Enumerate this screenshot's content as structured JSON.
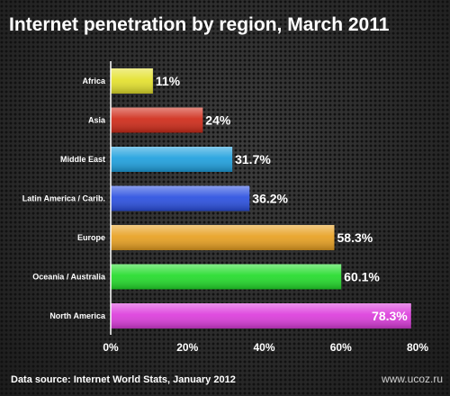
{
  "title": "Internet penetration by region, March 2011",
  "footer": {
    "source": "Data source: Internet World Stats, January 2012",
    "watermark": "www.ucoz.ru"
  },
  "chart_data": {
    "type": "bar",
    "orientation": "horizontal",
    "title": "Internet penetration by region, March 2011",
    "categories": [
      "Africa",
      "Asia",
      "Middle East",
      "Latin America / Carib.",
      "Europe",
      "Oceania / Australia",
      "North America"
    ],
    "values": [
      11,
      24,
      31.7,
      36.2,
      58.3,
      60.1,
      78.3
    ],
    "value_labels": [
      "11%",
      "24%",
      "31.7%",
      "36.2%",
      "58.3%",
      "60.1%",
      "78.3%"
    ],
    "colors": [
      "#e4e12c",
      "#cf2a18",
      "#1ea0de",
      "#2a4fe0",
      "#e8a020",
      "#22dc2a",
      "#dc3cdc"
    ],
    "xlim": [
      0,
      80
    ],
    "x_ticks": [
      0,
      20,
      40,
      60,
      80
    ],
    "x_tick_labels": [
      "0%",
      "20%",
      "40%",
      "60%",
      "80%"
    ],
    "xlabel": "",
    "ylabel": "",
    "grid": false,
    "legend": "none"
  }
}
